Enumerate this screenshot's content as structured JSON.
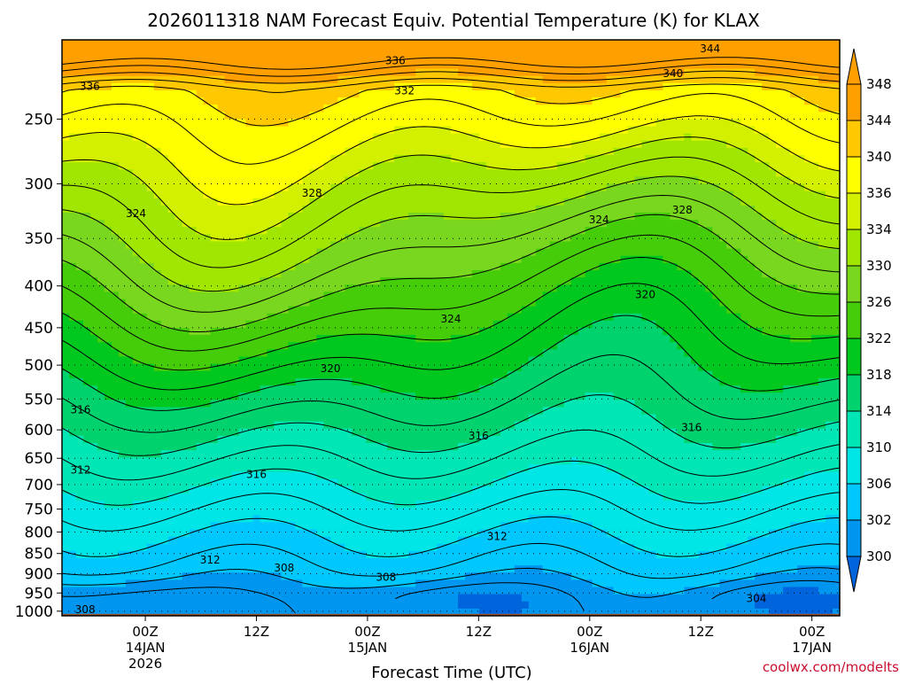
{
  "title": "2026011318 NAM Forecast Equiv. Potential Temperature (K) for KLAX",
  "credit": "coolwx.com/modelts",
  "chart_data": {
    "type": "contour",
    "title": "2026011318 NAM Forecast Equiv. Potential Temperature (K) for KLAX",
    "xlabel": "Forecast Time (UTC)",
    "ylabel": "",
    "x_ticks": [
      {
        "line1": "00Z",
        "line2": "14JAN",
        "line3": "2026"
      },
      {
        "line1": "12Z",
        "line2": "",
        "line3": ""
      },
      {
        "line1": "00Z",
        "line2": "15JAN",
        "line3": ""
      },
      {
        "line1": "12Z",
        "line2": "",
        "line3": ""
      },
      {
        "line1": "00Z",
        "line2": "16JAN",
        "line3": ""
      },
      {
        "line1": "12Z",
        "line2": "",
        "line3": ""
      },
      {
        "line1": "00Z",
        "line2": "17JAN",
        "line3": ""
      }
    ],
    "x_range_hours": [
      -3,
      81
    ],
    "x_tick_hours": [
      6,
      18,
      30,
      42,
      54,
      66,
      78
    ],
    "y_ticks": [
      250,
      300,
      350,
      400,
      450,
      500,
      550,
      600,
      650,
      700,
      750,
      800,
      850,
      900,
      950,
      1000
    ],
    "y_range_hpa": [
      200,
      1013
    ],
    "y_scale": "log-pressure",
    "grid": "dotted horizontal at pressure ticks",
    "colorbar": {
      "labels": [
        "348",
        "344",
        "340",
        "336",
        "334",
        "330",
        "326",
        "322",
        "318",
        "314",
        "310",
        "306",
        "302",
        "300"
      ],
      "colors": [
        "#ffa000",
        "#ffc800",
        "#ffff00",
        "#d2f000",
        "#a0e600",
        "#78d71e",
        "#46cd0a",
        "#00c81e",
        "#00d26e",
        "#00e6b4",
        "#00e6e6",
        "#00c8ff",
        "#0096f0",
        "#0064dc"
      ]
    },
    "contour_labels": [
      {
        "text": "344",
        "p": 205,
        "h": 67
      },
      {
        "text": "340",
        "p": 220,
        "h": 63
      },
      {
        "text": "336",
        "p": 212,
        "h": 33
      },
      {
        "text": "336",
        "p": 228,
        "h": 0
      },
      {
        "text": "332",
        "p": 231,
        "h": 34
      },
      {
        "text": "328",
        "p": 308,
        "h": 24
      },
      {
        "text": "328",
        "p": 323,
        "h": 64
      },
      {
        "text": "324",
        "p": 326,
        "h": 5
      },
      {
        "text": "324",
        "p": 332,
        "h": 55
      },
      {
        "text": "324",
        "p": 439,
        "h": 39
      },
      {
        "text": "320",
        "p": 410,
        "h": 60
      },
      {
        "text": "320",
        "p": 505,
        "h": 26
      },
      {
        "text": "316",
        "p": 567,
        "h": -1
      },
      {
        "text": "316",
        "p": 610,
        "h": 42
      },
      {
        "text": "316",
        "p": 596,
        "h": 65
      },
      {
        "text": "316",
        "p": 680,
        "h": 18
      },
      {
        "text": "312",
        "p": 672,
        "h": -1
      },
      {
        "text": "312",
        "p": 810,
        "h": 44
      },
      {
        "text": "312",
        "p": 866,
        "h": 13
      },
      {
        "text": "308",
        "p": 885,
        "h": 21
      },
      {
        "text": "308",
        "p": 909,
        "h": 32
      },
      {
        "text": "308",
        "p": 995,
        "h": -0.5
      },
      {
        "text": "304",
        "p": 965,
        "h": 72
      }
    ]
  }
}
